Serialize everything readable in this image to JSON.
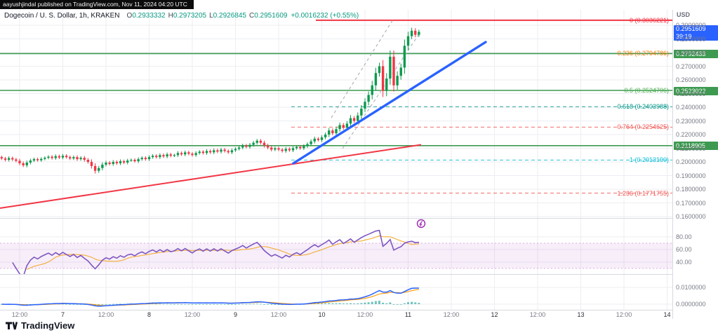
{
  "publish_bar": {
    "text": "aayushjindal published on TradingView.com, Nov 11, 2024 04:20 UTC"
  },
  "header": {
    "symbol": "Dogecoin / U. S. Dollar, 1h, KRAKEN",
    "ohlc": {
      "o_label": "O",
      "o": "0.2933332",
      "h_label": "H",
      "h": "0.2973205",
      "l_label": "L",
      "l": "0.2926845",
      "c_label": "C",
      "c": "0.2951609",
      "change": "+0.0016232 (+0.55%)"
    }
  },
  "axis": {
    "currency": "USD",
    "price_ticks": [
      "0.3000000",
      "0.2900000",
      "0.2800000",
      "0.2700000",
      "0.2600000",
      "0.2500000",
      "0.2400000",
      "0.2300000",
      "0.2200000",
      "0.2100000",
      "0.2000000",
      "0.1900000",
      "0.1800000",
      "0.1700000",
      "0.1600000"
    ],
    "rsi_ticks": [
      "80.00",
      "60.00",
      "40.00"
    ],
    "macd_ticks": [
      "0.0100000",
      "0.0000000"
    ],
    "last_price_badge": {
      "price": "0.2951609",
      "countdown": "39:19"
    },
    "level_badges": [
      {
        "text": "0.2792433",
        "value": 0.2792433
      },
      {
        "text": "0.2523022",
        "value": 0.2523022
      },
      {
        "text": "0.2118905",
        "value": 0.2118905
      }
    ]
  },
  "fib_levels": [
    {
      "label": "0 (0.3036221)",
      "value": 0.3036221,
      "color": "#f23645",
      "line": "solid"
    },
    {
      "label": "0.236 (0.2794786)",
      "value": 0.2794786,
      "color": "#f57c00",
      "line": "none"
    },
    {
      "label": "0.5 (0.2524706)",
      "value": 0.2524706,
      "color": "#4caf50",
      "line": "none"
    },
    {
      "label": "0.618 (0.2403988)",
      "value": 0.2403988,
      "color": "#009688",
      "line": "dashed"
    },
    {
      "label": "0.764 (0.2254625)",
      "value": 0.2254625,
      "color": "#ef5350",
      "line": "dashed"
    },
    {
      "label": "1 (0.2013190)",
      "value": 0.201319,
      "color": "#00bcd4",
      "line": "dashed"
    },
    {
      "label": "1.236 (0.1771755)",
      "value": 0.1771755,
      "color": "#ef5350",
      "line": "dashed"
    }
  ],
  "time_axis": [
    "12:00",
    "7",
    "12:00",
    "8",
    "12:00",
    "9",
    "12:00",
    "10",
    "12:00",
    "11",
    "12:00",
    "12",
    "12:00",
    "13",
    "12:00",
    "14"
  ],
  "chart_data": {
    "type": "candlestick",
    "title": "Dogecoin / U. S. Dollar, 1h, KRAKEN",
    "ylabel": "USD",
    "interval": "1h",
    "exchange": "KRAKEN",
    "visible_price_range": [
      0.155,
      0.305
    ],
    "indicators": [
      "RSI with MA and 30-70 band",
      "MACD with signal and histogram"
    ],
    "rsi_visible_range": [
      20,
      100
    ],
    "macd_visible_range": [
      -0.004,
      0.016
    ],
    "last_candle": {
      "o": 0.2933332,
      "h": 0.2973205,
      "l": 0.2926845,
      "c": 0.2951609
    },
    "support_levels": [
      0.2792433,
      0.2523022,
      0.2118905
    ],
    "resistance_level": 0.3036221,
    "first_open": 0.2035,
    "closes": [
      0.2025,
      0.2015,
      0.2028,
      0.2018,
      0.2008,
      0.199,
      0.1975,
      0.1995,
      0.201,
      0.202,
      0.2012,
      0.2022,
      0.203,
      0.2038,
      0.2028,
      0.2042,
      0.2032,
      0.2045,
      0.2035,
      0.2025,
      0.2035,
      0.202,
      0.203,
      0.2015,
      0.2,
      0.197,
      0.1935,
      0.1955,
      0.198,
      0.1995,
      0.1985,
      0.2,
      0.199,
      0.2005,
      0.1995,
      0.201,
      0.2015,
      0.2005,
      0.202,
      0.203,
      0.202,
      0.2035,
      0.2045,
      0.2035,
      0.205,
      0.204,
      0.2055,
      0.2045,
      0.205,
      0.2065,
      0.2055,
      0.207,
      0.206,
      0.205,
      0.2065,
      0.2075,
      0.2065,
      0.208,
      0.207,
      0.2085,
      0.2075,
      0.209,
      0.208,
      0.207,
      0.2085,
      0.2095,
      0.2105,
      0.212,
      0.211,
      0.2125,
      0.214,
      0.2155,
      0.214,
      0.212,
      0.2105,
      0.209,
      0.21,
      0.209,
      0.208,
      0.2095,
      0.2085,
      0.21,
      0.211,
      0.21,
      0.2115,
      0.213,
      0.215,
      0.217,
      0.216,
      0.218,
      0.22,
      0.223,
      0.221,
      0.224,
      0.227,
      0.225,
      0.228,
      0.232,
      0.23,
      0.234,
      0.239,
      0.244,
      0.249,
      0.256,
      0.265,
      0.27,
      0.252,
      0.261,
      0.277,
      0.256,
      0.263,
      0.269,
      0.285,
      0.292,
      0.296,
      0.293,
      0.2951609
    ]
  },
  "colors": {
    "up": "#0d9a4e",
    "down": "#f23645",
    "blue_trendline": "#2962ff",
    "red_line": "#f23645",
    "support_green": "#3d9a50",
    "rsi": "#7e57c2",
    "rsi_ma": "#f5b041",
    "macd": "#2962ff",
    "macd_signal": "#ff9800",
    "histogram": "#26a69a",
    "badge_blue": "#2962ff",
    "badge_green": "#3d9a50",
    "marker_purple": "#9c27b0"
  },
  "branding": {
    "logo_text": "TradingView"
  }
}
